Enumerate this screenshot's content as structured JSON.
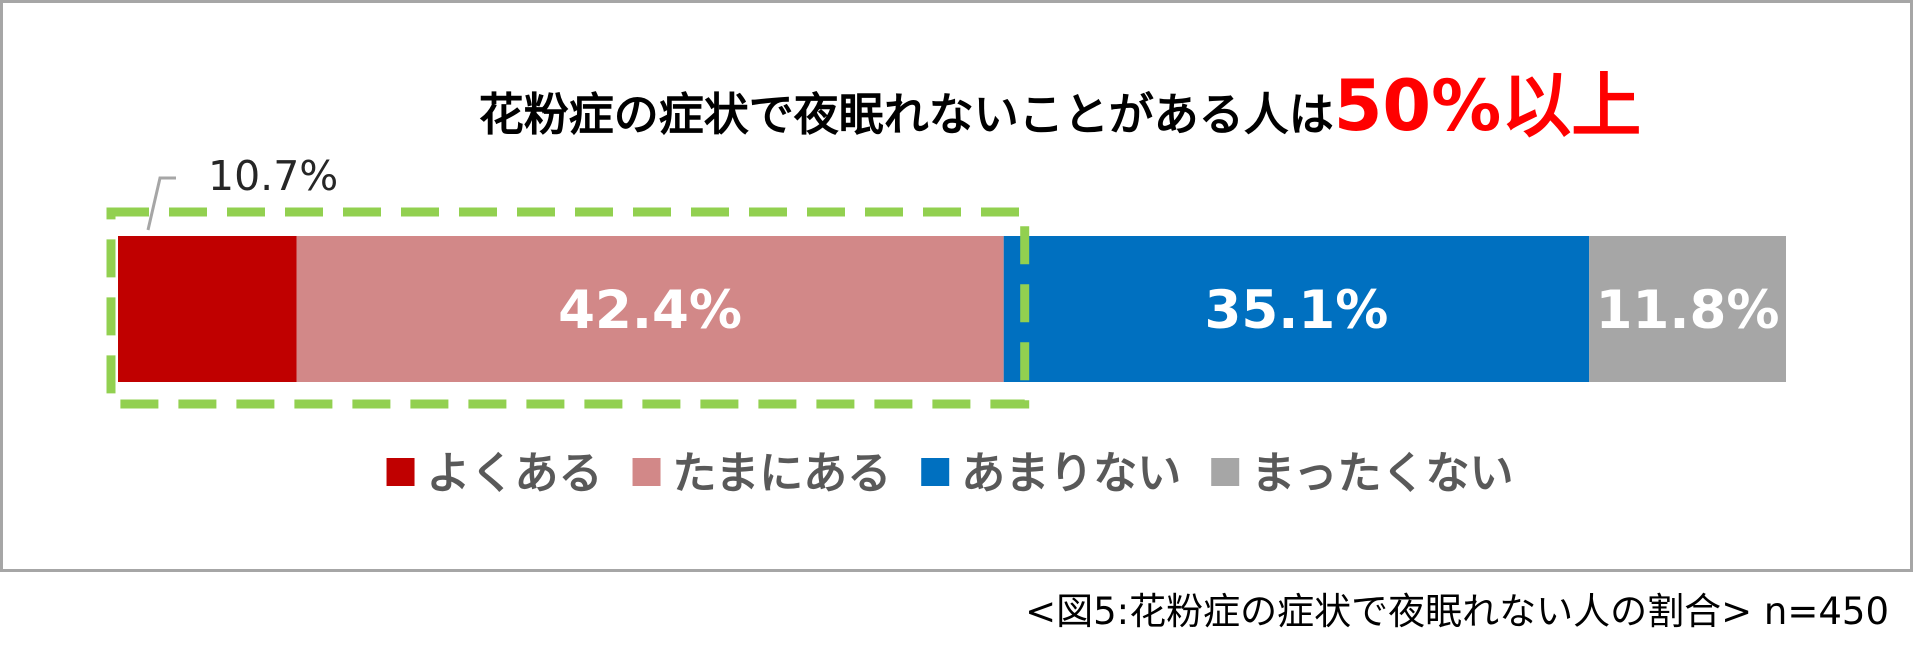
{
  "chart_data": {
    "type": "bar",
    "orientation": "horizontal-stacked-100",
    "title": "花粉症の症状で夜眠れないことがある人は",
    "title_highlight": "50%以上",
    "categories": [
      "よくある",
      "たまにある",
      "あまりない",
      "まったくない"
    ],
    "values": [
      10.7,
      42.4,
      35.1,
      11.8
    ],
    "value_labels": [
      "10.7%",
      "42.4%",
      "35.1%",
      "11.8%"
    ],
    "colors": [
      "#c00000",
      "#d28888",
      "#0070c0",
      "#a6a6a6"
    ],
    "xlim": [
      0,
      100
    ],
    "legend_position": "bottom",
    "highlight": {
      "covers": [
        "よくある",
        "たまにある"
      ],
      "style": "dashed-box",
      "color": "#92d050"
    },
    "grid": false
  },
  "caption": "<図5:花粉症の症状で夜眠れない人の割合> n=450",
  "colors": {
    "frame_border": "#a6a6a6",
    "label_text": "#262626",
    "legend_text": "#595959",
    "title_text": "#000000",
    "title_accent": "#ff0000"
  }
}
